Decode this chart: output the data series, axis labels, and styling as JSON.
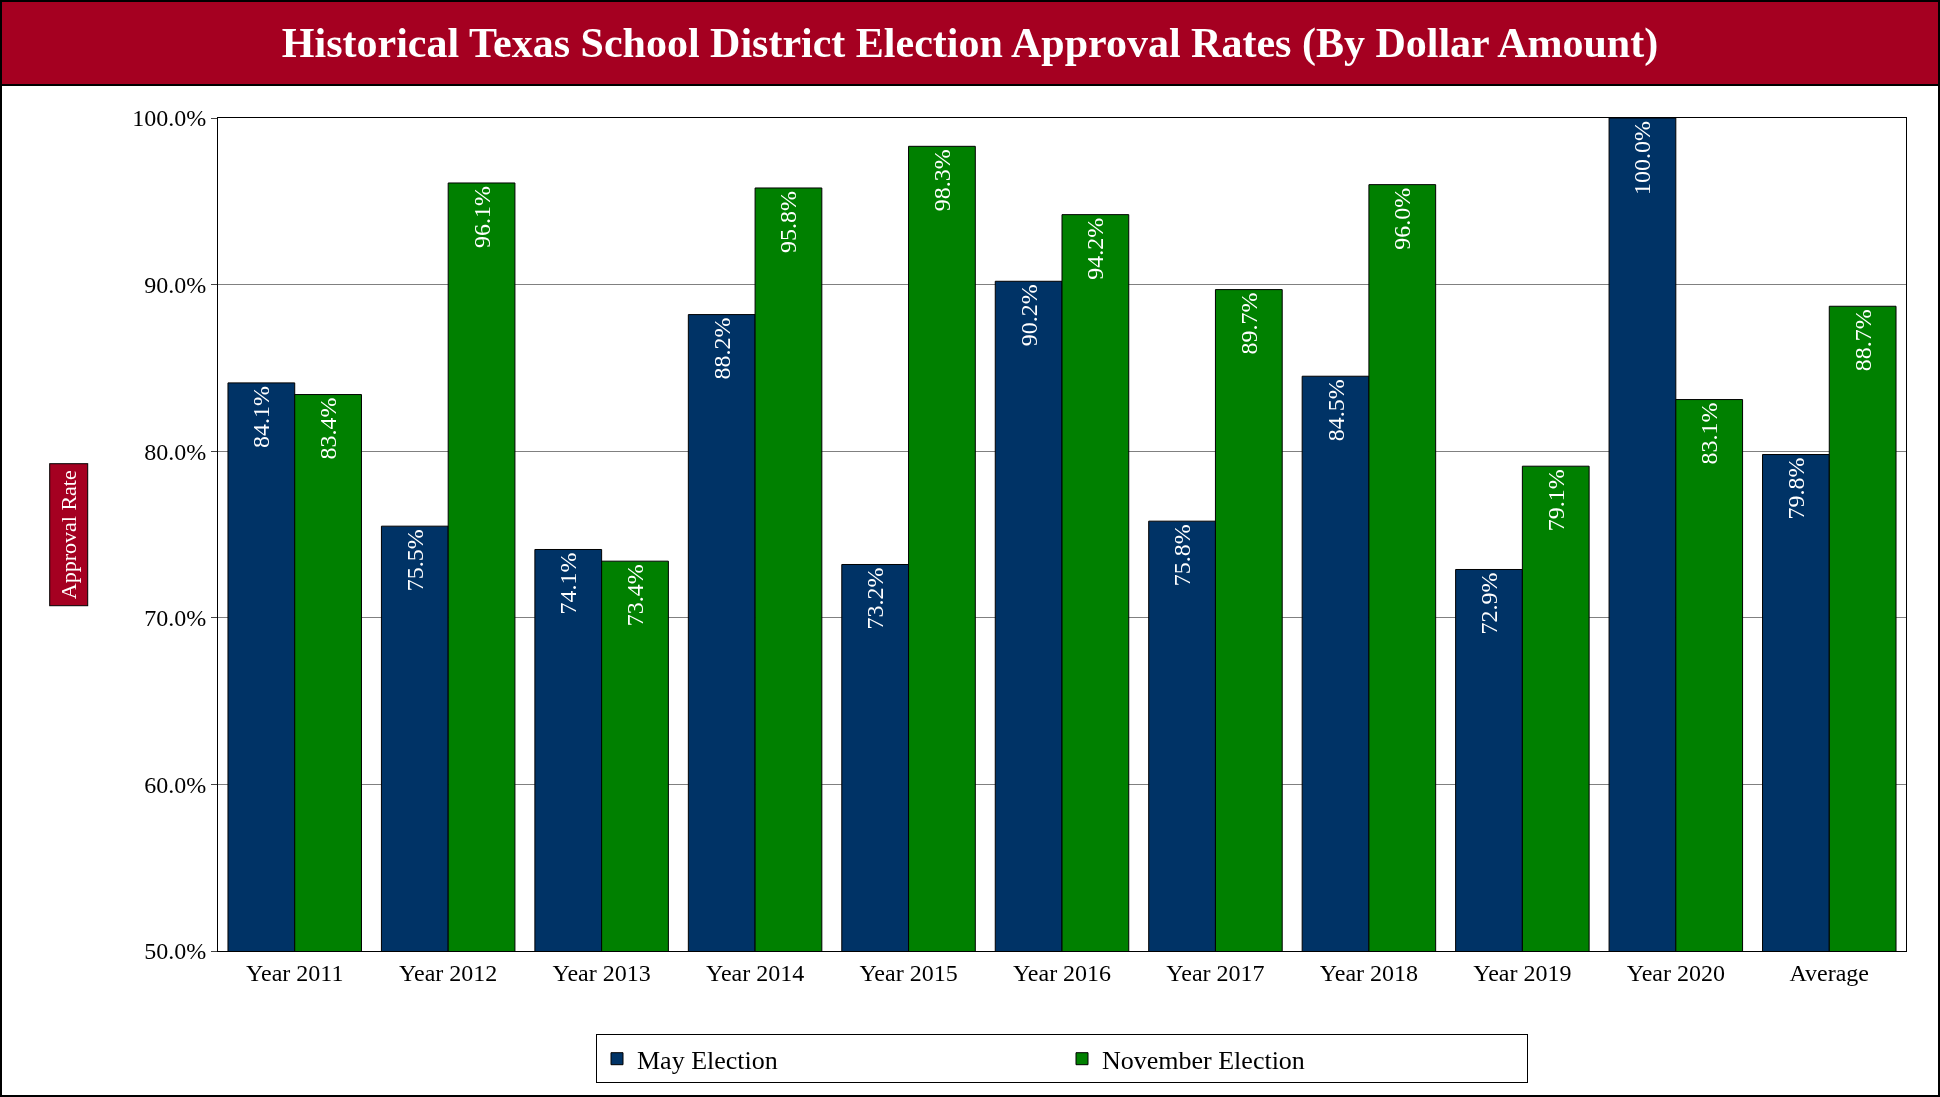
{
  "chart_data": {
    "type": "bar",
    "title": "Historical Texas School District Election Approval Rates (By Dollar Amount)",
    "ylabel": "Approval Rate",
    "categories": [
      "Year 2011",
      "Year 2012",
      "Year 2013",
      "Year 2014",
      "Year 2015",
      "Year 2016",
      "Year 2017",
      "Year 2018",
      "Year 2019",
      "Year 2020",
      "Average"
    ],
    "series": [
      {
        "name": "May Election",
        "color": "#003366",
        "values": [
          84.1,
          75.5,
          74.1,
          88.2,
          73.2,
          90.2,
          75.8,
          84.5,
          72.9,
          100.0,
          79.8
        ],
        "value_labels": [
          "84.1%",
          "75.5%",
          "74.1%",
          "88.2%",
          "73.2%",
          "90.2%",
          "75.8%",
          "84.5%",
          "72.9%",
          "100.0%",
          "79.8%"
        ]
      },
      {
        "name": "November Election",
        "color": "#008000",
        "values": [
          83.4,
          96.1,
          73.4,
          95.8,
          98.3,
          94.2,
          89.7,
          96.0,
          79.1,
          83.1,
          88.7
        ],
        "value_labels": [
          "83.4%",
          "96.1%",
          "73.4%",
          "95.8%",
          "98.3%",
          "94.2%",
          "89.7%",
          "96.0%",
          "79.1%",
          "83.1%",
          "88.7%"
        ]
      }
    ],
    "ylim": [
      50,
      100
    ],
    "yticks": [
      {
        "value": 50,
        "label": "50.0%"
      },
      {
        "value": 60,
        "label": "60.0%"
      },
      {
        "value": 70,
        "label": "70.0%"
      },
      {
        "value": 80,
        "label": "80.0%"
      },
      {
        "value": 90,
        "label": "90.0%"
      },
      {
        "value": 100,
        "label": "100.0%"
      }
    ],
    "grid": "y",
    "legend": "bottom"
  }
}
